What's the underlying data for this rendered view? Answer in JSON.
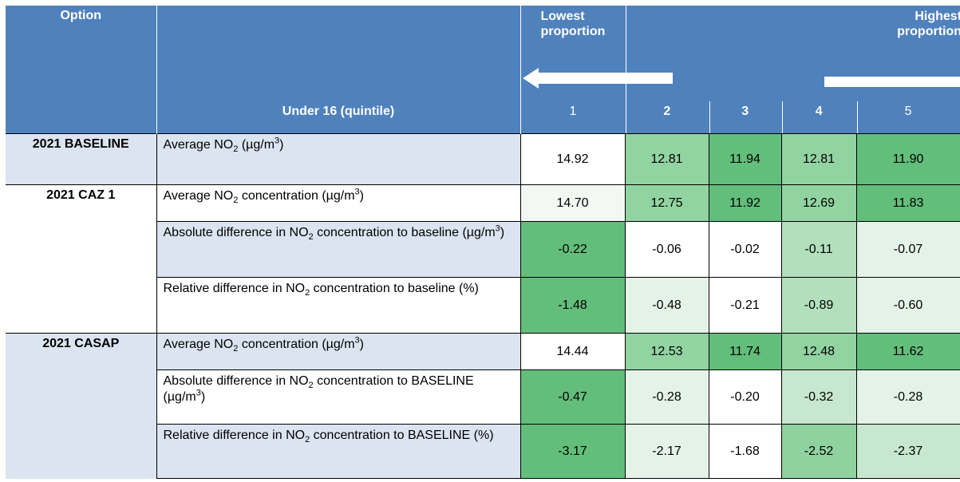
{
  "header": {
    "option_label": "Option",
    "group_label": "Under 16 (quintile)",
    "lowest_label": "Lowest proportion",
    "highest_label": "Highest proportion",
    "quintiles": [
      "1",
      "2",
      "3",
      "4",
      "5"
    ]
  },
  "colors": {
    "header_bg": "#4f81bd",
    "light_row_bg": "#dbe4f0",
    "green_dark": "#63be7b",
    "green_mid": "#92d3a2",
    "green_light": "#c7e8cf",
    "green_pale": "#e4f3e8",
    "white": "#ffffff"
  },
  "rows": [
    {
      "option": "2021 BASELINE",
      "desc_a": "Average NO",
      "desc_sub": "2",
      "desc_b": " (µg/m",
      "desc_sup": "3",
      "desc_c": ")",
      "values": [
        "14.92",
        "12.81",
        "11.94",
        "12.81",
        "11.90"
      ]
    },
    {
      "option": "2021 CAZ 1",
      "desc_a": "Average NO",
      "desc_sub": "2",
      "desc_b": " concentration (µg/m",
      "desc_sup": "3",
      "desc_c": ")",
      "values": [
        "14.70",
        "12.75",
        "11.92",
        "12.69",
        "11.83"
      ]
    },
    {
      "option": "",
      "desc_a": "Absolute difference in NO",
      "desc_sub": "2",
      "desc_b": " concentration to baseline (µg/m",
      "desc_sup": "3",
      "desc_c": ")",
      "values": [
        "-0.22",
        "-0.06",
        "-0.02",
        "-0.11",
        "-0.07"
      ]
    },
    {
      "option": "",
      "desc_a": "Relative difference in NO",
      "desc_sub": "2",
      "desc_b": " concentration to baseline (%)",
      "desc_sup": "",
      "desc_c": "",
      "values": [
        "-1.48",
        "-0.48",
        "-0.21",
        "-0.89",
        "-0.60"
      ]
    },
    {
      "option": "2021 CASAP",
      "desc_a": "Average NO",
      "desc_sub": "2",
      "desc_b": " concentration (µg/m",
      "desc_sup": "3",
      "desc_c": ")",
      "values": [
        "14.44",
        "12.53",
        "11.74",
        "12.48",
        "11.62"
      ]
    },
    {
      "option": "",
      "desc_a": "Absolute difference in NO",
      "desc_sub": "2",
      "desc_b": " concentration to BASELINE (µg/m",
      "desc_sup": "3",
      "desc_c": ")",
      "values": [
        "-0.47",
        "-0.28",
        "-0.20",
        "-0.32",
        "-0.28"
      ]
    },
    {
      "option": "",
      "desc_a": "Relative difference in NO",
      "desc_sub": "2",
      "desc_b": " concentration to BASELINE (%)",
      "desc_sup": "",
      "desc_c": "",
      "values": [
        "-3.17",
        "-2.17",
        "-1.68",
        "-2.52",
        "-2.37"
      ]
    }
  ],
  "cell_colors": [
    [
      "#ffffff",
      "#92d3a2",
      "#63be7b",
      "#92d3a2",
      "#63be7b"
    ],
    [
      "#f3f8f4",
      "#92d3a2",
      "#63be7b",
      "#92d3a2",
      "#63be7b"
    ],
    [
      "#63be7b",
      "#ffffff",
      "#ffffff",
      "#b2e0bd",
      "#e4f3e8"
    ],
    [
      "#63be7b",
      "#e4f3e8",
      "#ffffff",
      "#b2e0bd",
      "#e4f3e8"
    ],
    [
      "#ffffff",
      "#92d3a2",
      "#63be7b",
      "#92d3a2",
      "#63be7b"
    ],
    [
      "#63be7b",
      "#e4f3e8",
      "#ffffff",
      "#c7e8cf",
      "#e4f3e8"
    ],
    [
      "#63be7b",
      "#e4f3e8",
      "#ffffff",
      "#8fd19f",
      "#c7e8cf"
    ]
  ]
}
